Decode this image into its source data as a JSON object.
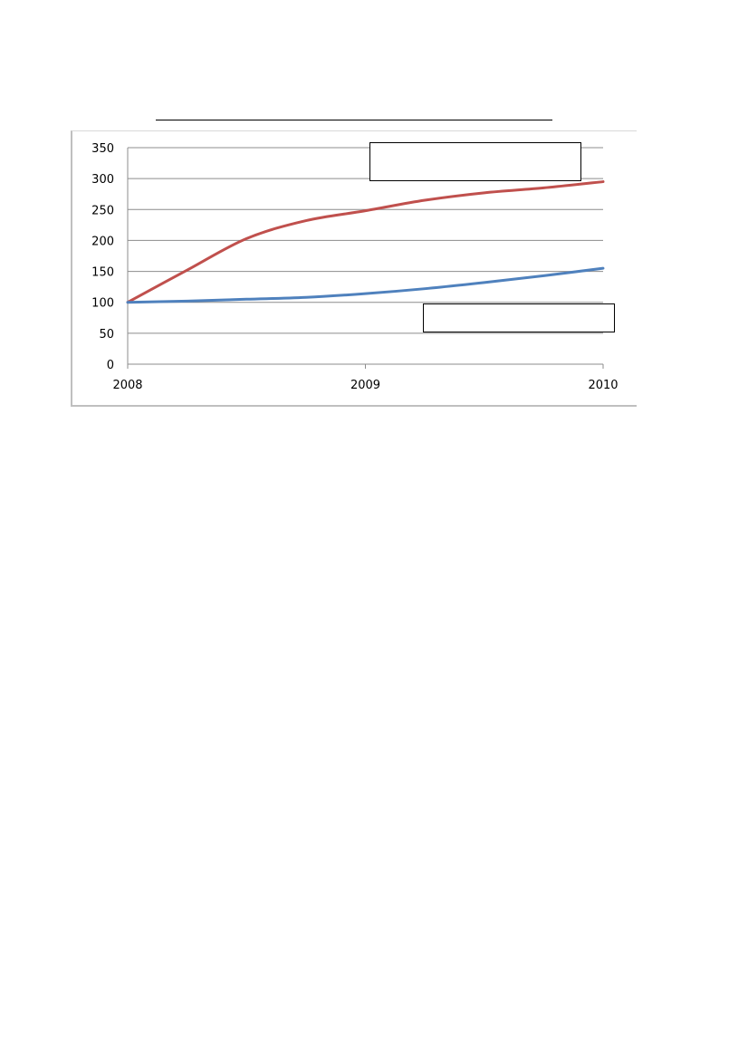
{
  "chart_data": {
    "type": "line",
    "title": "",
    "xlabel": "",
    "ylabel": "",
    "x": [
      2008,
      2008.25,
      2008.5,
      2008.75,
      2009,
      2009.25,
      2009.5,
      2009.75,
      2010
    ],
    "x_ticks": [
      "2008",
      "2009",
      "2010"
    ],
    "y_ticks": [
      "0",
      "50",
      "100",
      "150",
      "200",
      "250",
      "300",
      "350"
    ],
    "ylim": [
      0,
      350
    ],
    "grid": true,
    "series": [
      {
        "values": [
          100,
          152,
          203,
          232,
          248,
          265,
          277,
          285,
          295
        ],
        "color": "#c0504d"
      },
      {
        "values": [
          100,
          102,
          105,
          108,
          114,
          122,
          132,
          143,
          155
        ],
        "color": "#4f81bd"
      }
    ],
    "annotations": [
      {
        "text": "",
        "near_series": 0
      },
      {
        "text": "",
        "near_series": 1
      }
    ]
  }
}
